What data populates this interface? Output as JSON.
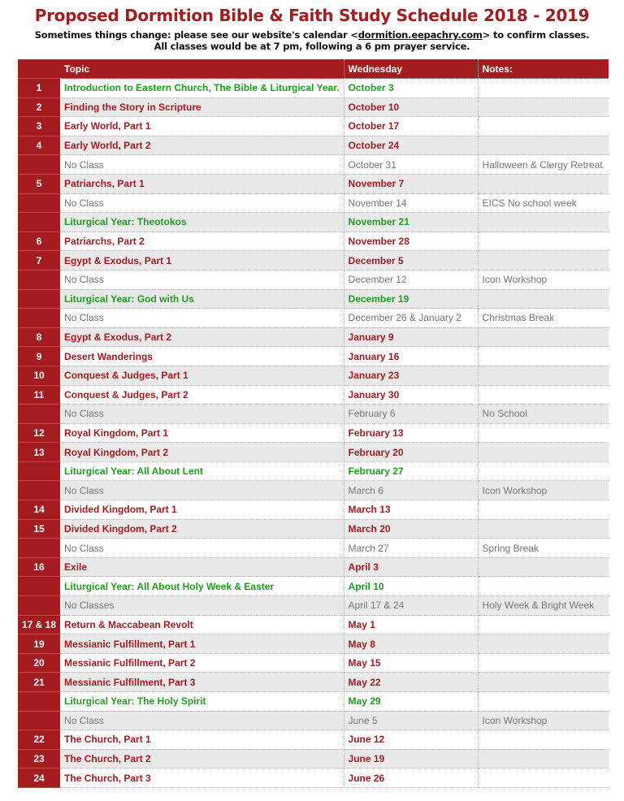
{
  "header": {
    "title": "Proposed Dormition Bible & Faith Study Schedule 2018 - 2019",
    "subtitle_pre": "Sometimes things change: please see our website's calendar <",
    "subtitle_link": "dormition.eepachry.com",
    "subtitle_post": "> to confirm classes.",
    "subtitle2": "All classes would be at 7 pm, following a 6 pm prayer service."
  },
  "table": {
    "columns": [
      "",
      "Topic",
      "Wednesday",
      "Notes:"
    ],
    "colors": {
      "header": "#a51c20",
      "lesson": "#a51c20",
      "liturgical": "#1f9e1f",
      "no_class": "#777777"
    },
    "rows": [
      {
        "num": "1",
        "topic": "Introduction to Eastern Church, The Bible & Liturgical Year.",
        "date": "October 3",
        "notes": "",
        "type": "lit"
      },
      {
        "num": "2",
        "topic": "Finding the Story in Scripture",
        "date": "October 10",
        "notes": "",
        "type": "lesson"
      },
      {
        "num": "3",
        "topic": "Early World, Part 1",
        "date": "October 17",
        "notes": "",
        "type": "lesson"
      },
      {
        "num": "4",
        "topic": "Early World, Part 2",
        "date": "October 24",
        "notes": "",
        "type": "lesson"
      },
      {
        "num": "",
        "topic": "No Class",
        "date": "October 31",
        "notes": "Halloween & Clergy Retreat",
        "type": "none"
      },
      {
        "num": "5",
        "topic": "Patriarchs, Part 1",
        "date": "November 7",
        "notes": "",
        "type": "lesson"
      },
      {
        "num": "",
        "topic": "No Class",
        "date": "November 14",
        "notes": "EICS No school week",
        "type": "none"
      },
      {
        "num": "",
        "topic": "Liturgical Year: Theotokos",
        "date": "November 21",
        "notes": "",
        "type": "lit"
      },
      {
        "num": "6",
        "topic": "Patriarchs, Part 2",
        "date": "November 28",
        "notes": "",
        "type": "lesson"
      },
      {
        "num": "7",
        "topic": "Egypt & Exodus, Part 1",
        "date": "December 5",
        "notes": "",
        "type": "lesson"
      },
      {
        "num": "",
        "topic": "No Class",
        "date": "December 12",
        "notes": "Icon Workshop",
        "type": "none"
      },
      {
        "num": "",
        "topic": "Liturgical Year: God with Us",
        "date": "December 19",
        "notes": "",
        "type": "lit"
      },
      {
        "num": "",
        "topic": "No Class",
        "date": "December 26 & January 2",
        "notes": "Christmas Break",
        "type": "none"
      },
      {
        "num": "8",
        "topic": "Egypt & Exodus, Part 2",
        "date": "January 9",
        "notes": "",
        "type": "lesson"
      },
      {
        "num": "9",
        "topic": "Desert Wanderings",
        "date": "January 16",
        "notes": "",
        "type": "lesson"
      },
      {
        "num": "10",
        "topic": "Conquest & Judges, Part 1",
        "date": "January 23",
        "notes": "",
        "type": "lesson"
      },
      {
        "num": "11",
        "topic": "Conquest & Judges, Part 2",
        "date": "January 30",
        "notes": "",
        "type": "lesson"
      },
      {
        "num": "",
        "topic": "No Class",
        "date": "February 6",
        "notes": "No School",
        "type": "none"
      },
      {
        "num": "12",
        "topic": "Royal Kingdom, Part 1",
        "date": "February 13",
        "notes": "",
        "type": "lesson"
      },
      {
        "num": "13",
        "topic": "Royal Kingdom, Part 2",
        "date": "February 20",
        "notes": "",
        "type": "lesson"
      },
      {
        "num": "",
        "topic": "Liturgical Year: All About Lent",
        "date": "February 27",
        "notes": "",
        "type": "lit"
      },
      {
        "num": "",
        "topic": "No Class",
        "date": "March 6",
        "notes": "Icon Workshop",
        "type": "none"
      },
      {
        "num": "14",
        "topic": "Divided Kingdom, Part 1",
        "date": "March 13",
        "notes": "",
        "type": "lesson"
      },
      {
        "num": "15",
        "topic": "Divided Kingdom, Part 2",
        "date": "March 20",
        "notes": "",
        "type": "lesson"
      },
      {
        "num": "",
        "topic": "No Class",
        "date": "March 27",
        "notes": "Spring Break",
        "type": "none"
      },
      {
        "num": "16",
        "topic": "Exile",
        "date": "April 3",
        "notes": "",
        "type": "lesson"
      },
      {
        "num": "",
        "topic": "Liturgical Year: All About Holy Week & Easter",
        "date": "April 10",
        "notes": "",
        "type": "lit"
      },
      {
        "num": "",
        "topic": "No Classes",
        "date": "April 17 & 24",
        "notes": "Holy Week & Bright Week",
        "type": "none"
      },
      {
        "num": "17 & 18",
        "topic": "Return & Maccabean Revolt",
        "date": "May 1",
        "notes": "",
        "type": "lesson"
      },
      {
        "num": "19",
        "topic": "Messianic Fulfillment, Part 1",
        "date": "May 8",
        "notes": "",
        "type": "lesson"
      },
      {
        "num": "20",
        "topic": "Messianic Fulfillment, Part 2",
        "date": "May 15",
        "notes": "",
        "type": "lesson"
      },
      {
        "num": "21",
        "topic": "Messianic Fulfillment, Part 3",
        "date": "May 22",
        "notes": "",
        "type": "lesson"
      },
      {
        "num": "",
        "topic": "Liturgical Year: The Holy Spirit",
        "date": "May 29",
        "notes": "",
        "type": "lit"
      },
      {
        "num": "",
        "topic": "No Class",
        "date": "June 5",
        "notes": "Icon Workshop",
        "type": "none"
      },
      {
        "num": "22",
        "topic": "The Church, Part 1",
        "date": "June 12",
        "notes": "",
        "type": "lesson"
      },
      {
        "num": "23",
        "topic": "The Church, Part 2",
        "date": "June 19",
        "notes": "",
        "type": "lesson"
      },
      {
        "num": "24",
        "topic": "The Church, Part 3",
        "date": "June 26",
        "notes": "",
        "type": "lesson"
      }
    ]
  }
}
